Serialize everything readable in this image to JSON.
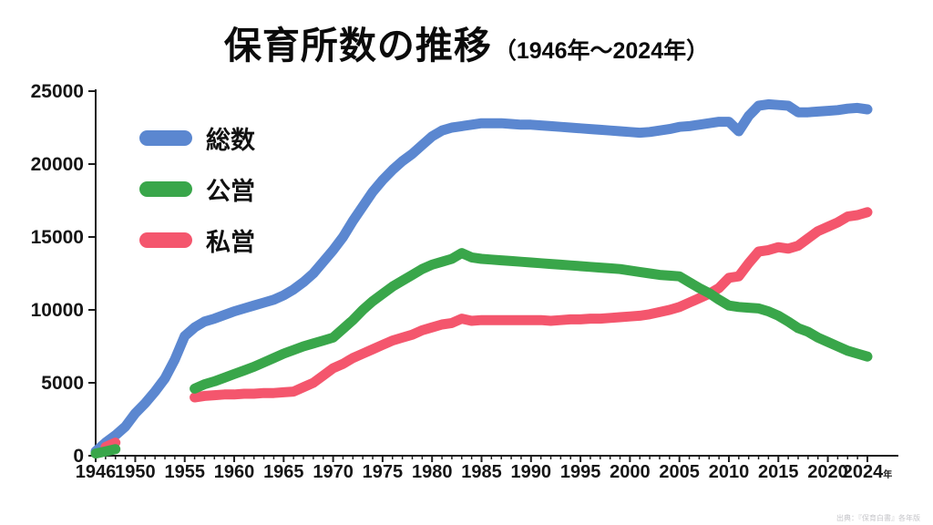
{
  "title": {
    "main": "保育所数の推移",
    "sub": "（1946年～2024年）"
  },
  "source": "出典：『保育白書』各年版",
  "axis_colors": {
    "line": "#1c1c1c",
    "tick_label": "#161616"
  },
  "chart_data": {
    "type": "line",
    "title": "保育所数の推移（1946年～2024年）",
    "xlabel": "",
    "ylabel": "",
    "x_range": [
      1946,
      2024
    ],
    "ylim": [
      0,
      25000
    ],
    "y_ticks": [
      0,
      5000,
      10000,
      15000,
      20000,
      25000
    ],
    "x_ticks": [
      1946,
      1950,
      1955,
      1960,
      1965,
      1970,
      1975,
      1980,
      1985,
      1990,
      1995,
      2000,
      2005,
      2010,
      2015,
      2020,
      2024
    ],
    "last_x_tick_suffix": "年",
    "grid": false,
    "legend_position": "upper-left",
    "series": [
      {
        "name": "総数",
        "key": "total",
        "color": "#5b87d0",
        "segments": [
          [
            [
              1946,
              300
            ],
            [
              1947,
              900
            ],
            [
              1948,
              1400
            ],
            [
              1949,
              2000
            ],
            [
              1950,
              2900
            ],
            [
              1951,
              3600
            ],
            [
              1952,
              4400
            ],
            [
              1953,
              5300
            ],
            [
              1954,
              6600
            ],
            [
              1955,
              8200
            ],
            [
              1956,
              8800
            ],
            [
              1957,
              9200
            ],
            [
              1958,
              9400
            ],
            [
              1959,
              9650
            ],
            [
              1960,
              9900
            ],
            [
              1961,
              10100
            ],
            [
              1962,
              10300
            ],
            [
              1963,
              10500
            ],
            [
              1964,
              10700
            ],
            [
              1965,
              11000
            ],
            [
              1966,
              11400
            ],
            [
              1967,
              11900
            ],
            [
              1968,
              12500
            ],
            [
              1969,
              13300
            ],
            [
              1970,
              14100
            ],
            [
              1971,
              15000
            ],
            [
              1972,
              16100
            ],
            [
              1973,
              17100
            ],
            [
              1974,
              18100
            ],
            [
              1975,
              18900
            ],
            [
              1976,
              19600
            ],
            [
              1977,
              20200
            ],
            [
              1978,
              20700
            ],
            [
              1979,
              21300
            ],
            [
              1980,
              21900
            ],
            [
              1981,
              22300
            ],
            [
              1982,
              22500
            ],
            [
              1983,
              22600
            ],
            [
              1984,
              22700
            ],
            [
              1985,
              22800
            ],
            [
              1986,
              22800
            ],
            [
              1987,
              22800
            ],
            [
              1988,
              22750
            ],
            [
              1989,
              22700
            ],
            [
              1990,
              22700
            ],
            [
              1991,
              22650
            ],
            [
              1992,
              22600
            ],
            [
              1993,
              22550
            ],
            [
              1994,
              22500
            ],
            [
              1995,
              22450
            ],
            [
              1996,
              22400
            ],
            [
              1997,
              22350
            ],
            [
              1998,
              22300
            ],
            [
              1999,
              22250
            ],
            [
              2000,
              22200
            ],
            [
              2001,
              22150
            ],
            [
              2002,
              22200
            ],
            [
              2003,
              22300
            ],
            [
              2004,
              22400
            ],
            [
              2005,
              22550
            ],
            [
              2006,
              22600
            ],
            [
              2007,
              22700
            ],
            [
              2008,
              22800
            ],
            [
              2009,
              22900
            ],
            [
              2010,
              22900
            ],
            [
              2011,
              22250
            ],
            [
              2012,
              23300
            ],
            [
              2013,
              24000
            ],
            [
              2014,
              24100
            ],
            [
              2015,
              24050
            ],
            [
              2016,
              24000
            ],
            [
              2017,
              23550
            ],
            [
              2018,
              23550
            ],
            [
              2019,
              23600
            ],
            [
              2020,
              23650
            ],
            [
              2021,
              23700
            ],
            [
              2022,
              23800
            ],
            [
              2023,
              23850
            ],
            [
              2024,
              23750
            ]
          ]
        ]
      },
      {
        "name": "公営",
        "key": "public",
        "color": "#39a64a",
        "segments": [
          [
            [
              1946,
              150
            ],
            [
              1947,
              300
            ],
            [
              1948,
              450
            ]
          ],
          [
            [
              1956,
              4600
            ],
            [
              1957,
              4900
            ],
            [
              1958,
              5100
            ],
            [
              1959,
              5350
            ],
            [
              1960,
              5600
            ],
            [
              1961,
              5850
            ],
            [
              1962,
              6100
            ],
            [
              1963,
              6400
            ],
            [
              1964,
              6700
            ],
            [
              1965,
              7000
            ],
            [
              1966,
              7250
            ],
            [
              1967,
              7500
            ],
            [
              1968,
              7700
            ],
            [
              1969,
              7900
            ],
            [
              1970,
              8100
            ],
            [
              1971,
              8700
            ],
            [
              1972,
              9300
            ],
            [
              1973,
              10000
            ],
            [
              1974,
              10600
            ],
            [
              1975,
              11100
            ],
            [
              1976,
              11600
            ],
            [
              1977,
              12000
            ],
            [
              1978,
              12400
            ],
            [
              1979,
              12800
            ],
            [
              1980,
              13100
            ],
            [
              1981,
              13300
            ],
            [
              1982,
              13500
            ],
            [
              1983,
              13900
            ],
            [
              1984,
              13600
            ],
            [
              1985,
              13500
            ],
            [
              1986,
              13450
            ],
            [
              1987,
              13400
            ],
            [
              1988,
              13350
            ],
            [
              1989,
              13300
            ],
            [
              1990,
              13250
            ],
            [
              1991,
              13200
            ],
            [
              1992,
              13150
            ],
            [
              1993,
              13100
            ],
            [
              1994,
              13050
            ],
            [
              1995,
              13000
            ],
            [
              1996,
              12950
            ],
            [
              1997,
              12900
            ],
            [
              1998,
              12850
            ],
            [
              1999,
              12800
            ],
            [
              2000,
              12700
            ],
            [
              2001,
              12600
            ],
            [
              2002,
              12500
            ],
            [
              2003,
              12400
            ],
            [
              2004,
              12350
            ],
            [
              2005,
              12300
            ],
            [
              2006,
              11900
            ],
            [
              2007,
              11500
            ],
            [
              2008,
              11150
            ],
            [
              2009,
              10700
            ],
            [
              2010,
              10300
            ],
            [
              2011,
              10200
            ],
            [
              2012,
              10150
            ],
            [
              2013,
              10100
            ],
            [
              2014,
              9900
            ],
            [
              2015,
              9600
            ],
            [
              2016,
              9200
            ],
            [
              2017,
              8750
            ],
            [
              2018,
              8500
            ],
            [
              2019,
              8100
            ],
            [
              2020,
              7800
            ],
            [
              2021,
              7500
            ],
            [
              2022,
              7200
            ],
            [
              2023,
              7000
            ],
            [
              2024,
              6800
            ]
          ]
        ]
      },
      {
        "name": "私営",
        "key": "private",
        "color": "#f4566d",
        "segments": [
          [
            [
              1947,
              600
            ],
            [
              1948,
              900
            ]
          ],
          [
            [
              1956,
              4000
            ],
            [
              1957,
              4100
            ],
            [
              1958,
              4150
            ],
            [
              1959,
              4200
            ],
            [
              1960,
              4200
            ],
            [
              1961,
              4250
            ],
            [
              1962,
              4250
            ],
            [
              1963,
              4300
            ],
            [
              1964,
              4300
            ],
            [
              1965,
              4350
            ],
            [
              1966,
              4400
            ],
            [
              1967,
              4700
            ],
            [
              1968,
              5000
            ],
            [
              1969,
              5500
            ],
            [
              1970,
              6000
            ],
            [
              1971,
              6300
            ],
            [
              1972,
              6700
            ],
            [
              1973,
              7000
            ],
            [
              1974,
              7300
            ],
            [
              1975,
              7600
            ],
            [
              1976,
              7900
            ],
            [
              1977,
              8100
            ],
            [
              1978,
              8300
            ],
            [
              1979,
              8600
            ],
            [
              1980,
              8800
            ],
            [
              1981,
              9000
            ],
            [
              1982,
              9100
            ],
            [
              1983,
              9400
            ],
            [
              1984,
              9250
            ],
            [
              1985,
              9300
            ],
            [
              1986,
              9300
            ],
            [
              1987,
              9300
            ],
            [
              1988,
              9300
            ],
            [
              1989,
              9300
            ],
            [
              1990,
              9300
            ],
            [
              1991,
              9300
            ],
            [
              1992,
              9250
            ],
            [
              1993,
              9300
            ],
            [
              1994,
              9350
            ],
            [
              1995,
              9350
            ],
            [
              1996,
              9400
            ],
            [
              1997,
              9400
            ],
            [
              1998,
              9450
            ],
            [
              1999,
              9500
            ],
            [
              2000,
              9550
            ],
            [
              2001,
              9600
            ],
            [
              2002,
              9700
            ],
            [
              2003,
              9850
            ],
            [
              2004,
              10000
            ],
            [
              2005,
              10200
            ],
            [
              2006,
              10500
            ],
            [
              2007,
              10800
            ],
            [
              2008,
              11100
            ],
            [
              2009,
              11500
            ],
            [
              2010,
              12200
            ],
            [
              2011,
              12300
            ],
            [
              2012,
              13200
            ],
            [
              2013,
              14000
            ],
            [
              2014,
              14100
            ],
            [
              2015,
              14300
            ],
            [
              2016,
              14200
            ],
            [
              2017,
              14400
            ],
            [
              2018,
              14900
            ],
            [
              2019,
              15400
            ],
            [
              2020,
              15700
            ],
            [
              2021,
              16000
            ],
            [
              2022,
              16400
            ],
            [
              2023,
              16500
            ],
            [
              2024,
              16700
            ]
          ]
        ]
      }
    ]
  }
}
